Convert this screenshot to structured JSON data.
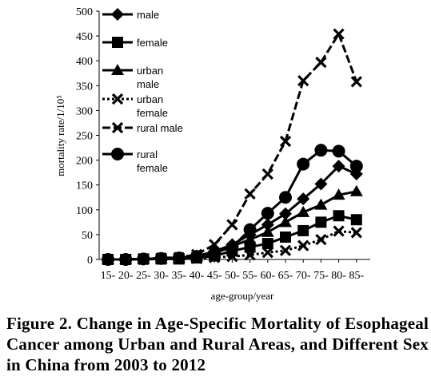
{
  "caption": "Figure 2. Change in Age-Specific Mortality of Esophageal Cancer among Urban and Rural Areas, and Different Sex in China from 2003 to 2012",
  "chart_data": {
    "type": "line",
    "xlabel": "age-group/year",
    "ylabel": "mortality rate/1/10⁵",
    "ylim": [
      0,
      500
    ],
    "yticks": [
      0,
      50,
      100,
      150,
      200,
      250,
      300,
      350,
      400,
      450,
      500
    ],
    "categories": [
      "15-",
      "20-",
      "25-",
      "30-",
      "35-",
      "40-",
      "45-",
      "50-",
      "55-",
      "60-",
      "65-",
      "70-",
      "75-",
      "80-",
      "85-"
    ],
    "legend_position": "top-left",
    "series": [
      {
        "name": "male",
        "marker": "diamond",
        "style": "solid",
        "values": [
          0,
          0,
          1,
          2,
          3,
          7,
          16,
          30,
          50,
          70,
          92,
          122,
          152,
          188,
          172
        ]
      },
      {
        "name": "female",
        "marker": "square",
        "style": "solid",
        "values": [
          0,
          0,
          1,
          1,
          1,
          3,
          7,
          17,
          25,
          32,
          45,
          58,
          75,
          88,
          80
        ]
      },
      {
        "name": "urban male",
        "marker": "triangle",
        "style": "solid",
        "values": [
          0,
          0,
          1,
          2,
          3,
          6,
          14,
          27,
          40,
          55,
          75,
          95,
          110,
          130,
          137
        ]
      },
      {
        "name": "urban female",
        "marker": "x",
        "style": "dotted",
        "values": [
          0,
          0,
          0,
          1,
          1,
          2,
          4,
          6,
          9,
          14,
          18,
          28,
          40,
          57,
          54
        ]
      },
      {
        "name": "rural male",
        "marker": "x",
        "style": "dashed",
        "values": [
          0,
          0,
          1,
          3,
          4,
          10,
          30,
          70,
          132,
          172,
          238,
          360,
          397,
          454,
          358
        ]
      },
      {
        "name": "rural female",
        "marker": "circle",
        "style": "solid",
        "values": [
          0,
          0,
          1,
          2,
          3,
          6,
          13,
          25,
          60,
          93,
          125,
          192,
          220,
          218,
          188
        ]
      }
    ],
    "legend_labels": [
      [
        "male"
      ],
      [
        "female"
      ],
      [
        "urban",
        "male"
      ],
      [
        "urban",
        "female"
      ],
      [
        "rural male"
      ],
      [
        "rural",
        "female"
      ]
    ]
  }
}
